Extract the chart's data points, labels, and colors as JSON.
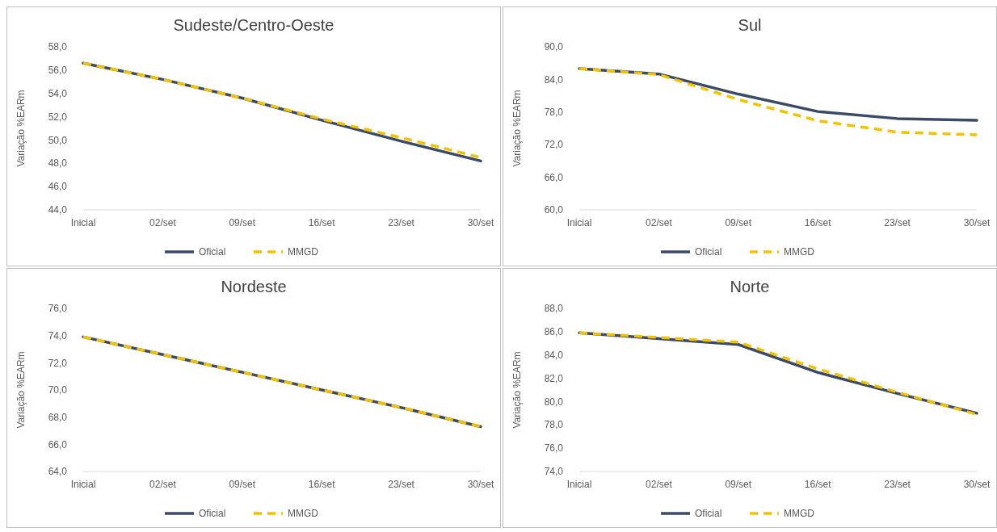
{
  "chart_data": [
    {
      "type": "line",
      "title": "Sudeste/Centro-Oeste",
      "ylabel": "Variação %EARm",
      "categories": [
        "Inicial",
        "02/set",
        "09/set",
        "16/set",
        "23/set",
        "30/set"
      ],
      "ylim": [
        44,
        58
      ],
      "yticks": [
        {
          "value": 44,
          "label": "44,0"
        },
        {
          "value": 46,
          "label": "46,0"
        },
        {
          "value": 48,
          "label": "48,0"
        },
        {
          "value": 50,
          "label": "50,0"
        },
        {
          "value": 52,
          "label": "52,0"
        },
        {
          "value": 54,
          "label": "54,0"
        },
        {
          "value": 56,
          "label": "56,0"
        },
        {
          "value": 58,
          "label": "58,0"
        }
      ],
      "grid": false,
      "legend": "bottom",
      "series": [
        {
          "name": "Oficial",
          "color": "#3b4a66",
          "line_style": "solid",
          "values": [
            56.6,
            55.2,
            53.6,
            51.7,
            49.9,
            48.2
          ]
        },
        {
          "name": "MMGD",
          "color": "#f2c200",
          "line_style": "dashed",
          "values": [
            56.6,
            55.2,
            53.6,
            51.8,
            50.2,
            48.5
          ]
        }
      ]
    },
    {
      "type": "line",
      "title": "Sul",
      "ylabel": "Variação %EARm",
      "categories": [
        "Inicial",
        "02/set",
        "09/set",
        "16/set",
        "23/set",
        "30/set"
      ],
      "ylim": [
        60,
        90
      ],
      "yticks": [
        {
          "value": 60,
          "label": "60,0"
        },
        {
          "value": 66,
          "label": "66,0"
        },
        {
          "value": 72,
          "label": "72,0"
        },
        {
          "value": 78,
          "label": "78,0"
        },
        {
          "value": 84,
          "label": "84,0"
        },
        {
          "value": 90,
          "label": "90,0"
        }
      ],
      "grid": false,
      "legend": "bottom",
      "series": [
        {
          "name": "Oficial",
          "color": "#3b4a66",
          "line_style": "solid",
          "values": [
            86.0,
            85.0,
            81.3,
            78.1,
            76.8,
            76.5
          ]
        },
        {
          "name": "MMGD",
          "color": "#f2c200",
          "line_style": "dashed",
          "values": [
            86.0,
            84.9,
            80.3,
            76.4,
            74.3,
            73.8
          ]
        }
      ]
    },
    {
      "type": "line",
      "title": "Nordeste",
      "ylabel": "Variação %EARm",
      "categories": [
        "Inicial",
        "02/set",
        "09/set",
        "16/set",
        "23/set",
        "30/set"
      ],
      "ylim": [
        64,
        76
      ],
      "yticks": [
        {
          "value": 64,
          "label": "64,0"
        },
        {
          "value": 66,
          "label": "66,0"
        },
        {
          "value": 68,
          "label": "68,0"
        },
        {
          "value": 70,
          "label": "70,0"
        },
        {
          "value": 72,
          "label": "72,0"
        },
        {
          "value": 74,
          "label": "74,0"
        },
        {
          "value": 76,
          "label": "76,0"
        }
      ],
      "grid": false,
      "legend": "bottom",
      "series": [
        {
          "name": "Oficial",
          "color": "#3b4a66",
          "line_style": "solid",
          "values": [
            73.9,
            72.6,
            71.3,
            70.0,
            68.7,
            67.3
          ]
        },
        {
          "name": "MMGD",
          "color": "#f2c200",
          "line_style": "dashed",
          "values": [
            73.9,
            72.6,
            71.3,
            70.0,
            68.7,
            67.3
          ]
        }
      ]
    },
    {
      "type": "line",
      "title": "Norte",
      "ylabel": "Variação %EARm",
      "categories": [
        "Inicial",
        "02/set",
        "09/set",
        "16/set",
        "23/set",
        "30/set"
      ],
      "ylim": [
        74,
        88
      ],
      "yticks": [
        {
          "value": 74,
          "label": "74,0"
        },
        {
          "value": 76,
          "label": "76,0"
        },
        {
          "value": 78,
          "label": "78,0"
        },
        {
          "value": 80,
          "label": "80,0"
        },
        {
          "value": 82,
          "label": "82,0"
        },
        {
          "value": 84,
          "label": "84,0"
        },
        {
          "value": 86,
          "label": "86,0"
        },
        {
          "value": 88,
          "label": "88,0"
        }
      ],
      "grid": false,
      "legend": "bottom",
      "series": [
        {
          "name": "Oficial",
          "color": "#3b4a66",
          "line_style": "solid",
          "values": [
            85.9,
            85.4,
            84.9,
            82.5,
            80.7,
            79.0
          ]
        },
        {
          "name": "MMGD",
          "color": "#f2c200",
          "line_style": "dashed",
          "values": [
            85.9,
            85.5,
            85.1,
            82.8,
            80.8,
            78.9
          ]
        }
      ]
    }
  ]
}
